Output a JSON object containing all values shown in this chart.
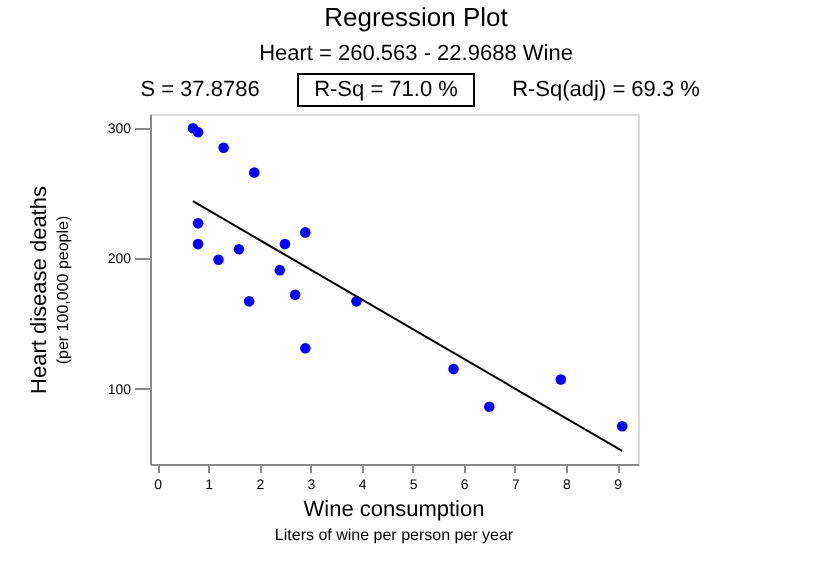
{
  "chart_data": {
    "type": "scatter",
    "title": "Regression Plot",
    "subtitle": "Heart = 260.563 - 22.9688 Wine",
    "xlabel": "Wine consumption",
    "ylabel": "Heart disease deaths",
    "annotations": [
      "S = 37.8786",
      "R-Sq = 71.0 %",
      "R-Sq(adj) = 69.3 %",
      "(per 100,000 people)",
      "Liters of wine per person per year"
    ],
    "series": [
      {
        "color": "#0000ff",
        "marker": "circle",
        "x": [
          2.5,
          3.9,
          2.9,
          2.4,
          2.9,
          0.8,
          9.1,
          0.8,
          0.7,
          7.9,
          1.8,
          1.9,
          0.8,
          6.5,
          1.6,
          5.8,
          1.3,
          1.2,
          2.7
        ],
        "values": [
          211,
          167,
          131,
          191,
          220,
          297,
          71,
          211,
          300,
          107,
          167,
          266,
          227,
          86,
          207,
          115,
          285,
          199,
          172
        ]
      },
      {
        "type": "line",
        "color": "#000000",
        "line_style": "solid",
        "x": [
          0.7,
          9.1
        ],
        "values": [
          244,
          52
        ]
      }
    ],
    "xlim": [
      -0.14,
      9.41
    ],
    "xticks": [
      0,
      1,
      2,
      3,
      4,
      5,
      6,
      7,
      8,
      9
    ],
    "ylim": [
      42,
      311
    ],
    "yticks": [
      100,
      200,
      300
    ],
    "grid": false
  }
}
